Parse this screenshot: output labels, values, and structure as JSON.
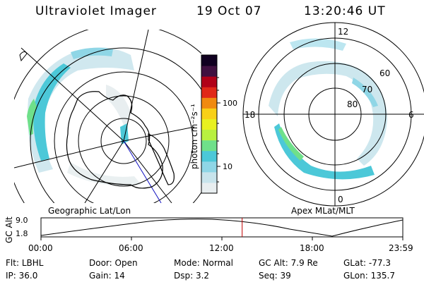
{
  "header": {
    "title": "Ultraviolet Imager",
    "date": "19 Oct 07",
    "time": "13:20:46 UT"
  },
  "colorbar": {
    "unit_label": "photon cm⁻²s⁻¹",
    "ticks": [
      "100",
      "10"
    ],
    "colors": [
      "#e8eef0",
      "#c8e4ec",
      "#8fd6e6",
      "#4cc8d8",
      "#6fe08a",
      "#b8f040",
      "#e8f020",
      "#f8d018",
      "#f08a10",
      "#e02818",
      "#b00018",
      "#401040",
      "#100020"
    ]
  },
  "left_map": {
    "caption": "Geographic Lat/Lon"
  },
  "right_map": {
    "caption": "Apex MLat/MLT",
    "mlt_labels": {
      "top": "12",
      "left": "18",
      "right": "6",
      "bottom": "0"
    },
    "lat_labels": [
      "60",
      "70",
      "80"
    ]
  },
  "altitude_plot": {
    "ylabel": "GC Alt",
    "ymax": "9.0",
    "ymin": "1.8",
    "time_ticks": [
      "00:00",
      "06:00",
      "12:00",
      "18:00",
      "23:59"
    ],
    "current_time_fraction": 0.556,
    "marker_color": "#c00000"
  },
  "status": {
    "row1": [
      {
        "label": "Flt:",
        "value": "LBHL"
      },
      {
        "label": "Door:",
        "value": "Open"
      },
      {
        "label": "Mode:",
        "value": "Normal"
      },
      {
        "label": "GC Alt:",
        "value": "7.9 Re"
      },
      {
        "label": "GLat:",
        "value": "-77.3"
      }
    ],
    "row2": [
      {
        "label": "IP:",
        "value": "36.0"
      },
      {
        "label": "Gain:",
        "value": "14"
      },
      {
        "label": "Dsp:",
        "value": "3.2"
      },
      {
        "label": "Seq:",
        "value": "39"
      },
      {
        "label": "GLon:",
        "value": "135.7"
      }
    ]
  }
}
